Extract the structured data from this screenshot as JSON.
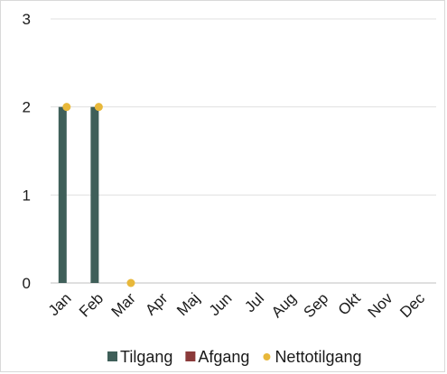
{
  "chart_data": {
    "type": "bar",
    "categories": [
      "Jan",
      "Feb",
      "Mar",
      "Apr",
      "Maj",
      "Jun",
      "Jul",
      "Aug",
      "Sep",
      "Okt",
      "Nov",
      "Dec"
    ],
    "series": [
      {
        "name": "Tilgang",
        "type": "bar",
        "color": "#3f5f59",
        "values": [
          2,
          2,
          0,
          0,
          0,
          0,
          0,
          0,
          0,
          0,
          0,
          0
        ]
      },
      {
        "name": "Afgang",
        "type": "bar",
        "color": "#8b3a3a",
        "values": [
          0,
          0,
          0,
          0,
          0,
          0,
          0,
          0,
          0,
          0,
          0,
          0
        ]
      },
      {
        "name": "Nettotilgang",
        "type": "scatter",
        "color": "#e8b83a",
        "values": [
          2,
          2,
          0,
          null,
          null,
          null,
          null,
          null,
          null,
          null,
          null,
          null
        ]
      }
    ],
    "yticks": [
      0,
      1,
      2,
      3
    ],
    "ylim": [
      0,
      3
    ],
    "grid": true,
    "legend_position": "bottom"
  }
}
